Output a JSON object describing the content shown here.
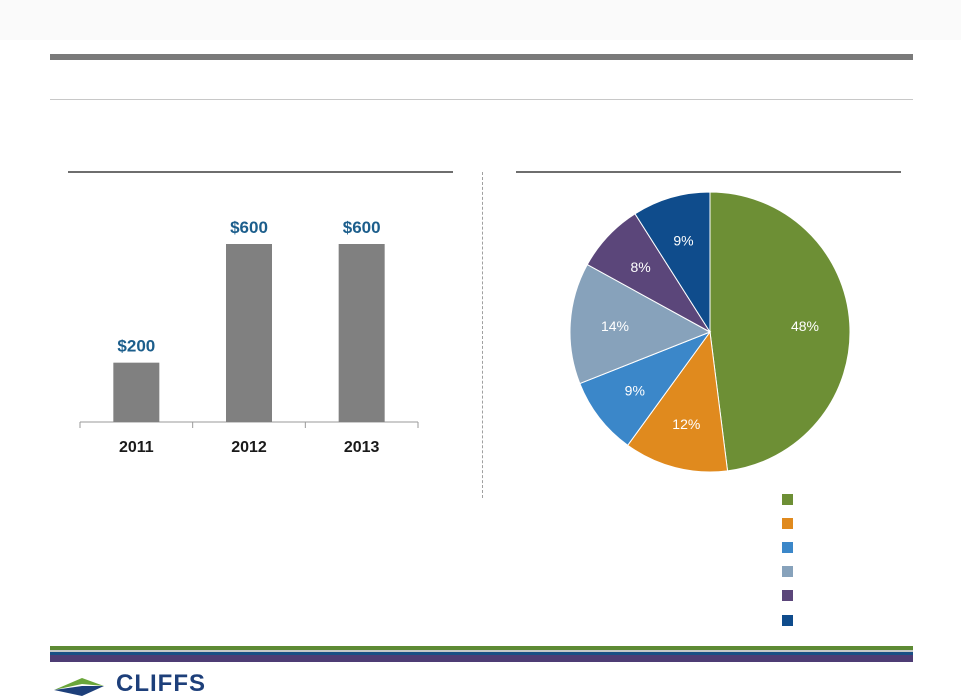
{
  "bar_chart": {
    "type": "bar",
    "categories": [
      "2011",
      "2012",
      "2013"
    ],
    "values": [
      200,
      600,
      600
    ],
    "data_labels": [
      "$200",
      "$600",
      "$600"
    ],
    "bar_color": "#808080",
    "label_color": "#1c5e8c"
  },
  "pie_chart": {
    "type": "pie",
    "values": [
      48,
      12,
      9,
      14,
      8,
      9
    ],
    "labels": [
      "48%",
      "12%",
      "9%",
      "14%",
      "8%",
      "9%"
    ],
    "colors": [
      "#6d8f35",
      "#e08a1e",
      "#3b87c9",
      "#87a2bb",
      "#5b467a",
      "#0f4c8c"
    ]
  },
  "chart_data": [
    {
      "type": "bar",
      "categories": [
        "2011",
        "2012",
        "2013"
      ],
      "values": [
        200,
        600,
        600
      ],
      "data_labels": [
        "$200",
        "$600",
        "$600"
      ]
    },
    {
      "type": "pie",
      "values": [
        48,
        12,
        9,
        14,
        8,
        9
      ],
      "labels": [
        "48%",
        "12%",
        "9%",
        "14%",
        "8%",
        "9%"
      ]
    }
  ],
  "footer": {
    "stripe_colors": [
      "#5d8a34",
      "#c8c8c8",
      "#1a4f85",
      "#4e3c74"
    ]
  },
  "logo": {
    "text": "CLIFFS",
    "icon": "cliffs-logo-icon",
    "colors": [
      "#6aa63a",
      "#1d3f7a"
    ]
  }
}
